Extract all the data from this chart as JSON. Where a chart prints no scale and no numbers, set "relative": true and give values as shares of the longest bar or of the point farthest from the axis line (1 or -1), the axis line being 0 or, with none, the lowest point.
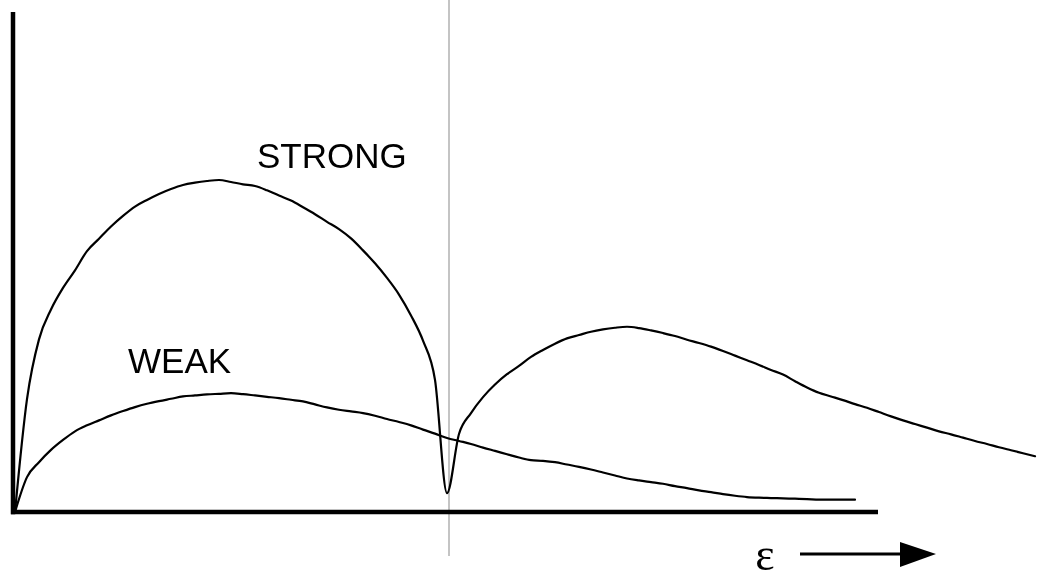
{
  "chart_data": {
    "type": "line",
    "relative": true,
    "xlabel": "ε",
    "categories": [
      null,
      null,
      null,
      null,
      null,
      null,
      null,
      null,
      null,
      null,
      null,
      null,
      null,
      null,
      null,
      null,
      null,
      null,
      null,
      null,
      null,
      null,
      null,
      null,
      null,
      null,
      null,
      null,
      null,
      null,
      null,
      null,
      null,
      null,
      null,
      null,
      null,
      null,
      null,
      null,
      null,
      null,
      null,
      null,
      null,
      null,
      null,
      null,
      null,
      null,
      null,
      null,
      null,
      null,
      null,
      null,
      null,
      null,
      null,
      null,
      null,
      null,
      null,
      null,
      null,
      null,
      null,
      null,
      null,
      null,
      null,
      null,
      null,
      null,
      null,
      null,
      null,
      null,
      null,
      null,
      null,
      null,
      null,
      null,
      null,
      null
    ],
    "series": [
      {
        "name": "STRONG",
        "color": "#000000",
        "values": [
          0,
          0.34,
          0.52,
          0.61,
          0.675,
          0.728,
          0.786,
          0.823,
          0.86,
          0.892,
          0.92,
          0.94,
          0.958,
          0.973,
          0.985,
          0.992,
          0.997,
          1.0,
          0.994,
          0.987,
          0.982,
          0.969,
          0.953,
          0.938,
          0.918,
          0.897,
          0.874,
          0.852,
          0.824,
          0.788,
          0.749,
          0.705,
          0.655,
          0.592,
          0.516,
          0.398,
          0.057,
          0.235,
          0.298,
          0.346,
          0.384,
          0.415,
          0.44,
          0.467,
          0.488,
          0.507,
          0.523,
          0.533,
          0.543,
          0.55,
          0.555,
          0.558,
          0.554,
          0.547,
          0.539,
          0.53,
          0.519,
          0.509,
          0.498,
          0.485,
          0.471,
          0.457,
          0.443,
          0.428,
          0.414,
          0.394,
          0.375,
          0.359,
          0.348,
          0.337,
          0.325,
          0.314,
          0.301,
          0.288,
          0.276,
          0.265,
          0.254,
          0.243,
          0.234,
          0.224,
          0.214,
          0.205,
          0.195,
          0.186,
          0.177,
          0.168
        ]
      },
      {
        "name": "WEAK",
        "color": "#000000",
        "values": [
          0,
          0.105,
          0.15,
          0.187,
          0.217,
          0.243,
          0.261,
          0.276,
          0.291,
          0.304,
          0.316,
          0.326,
          0.334,
          0.341,
          0.348,
          0.351,
          0.354,
          0.356,
          0.358,
          0.355,
          0.351,
          0.347,
          0.343,
          0.338,
          0.333,
          0.324,
          0.315,
          0.308,
          0.303,
          0.298,
          0.29,
          0.28,
          0.271,
          0.261,
          0.248,
          0.236,
          0.223,
          0.214,
          0.205,
          0.194,
          0.184,
          0.174,
          0.164,
          0.156,
          0.154,
          0.15,
          0.143,
          0.136,
          0.128,
          0.119,
          0.11,
          0.101,
          0.095,
          0.09,
          0.085,
          0.078,
          0.072,
          0.065,
          0.06,
          0.054,
          0.049,
          0.045,
          0.043,
          0.042,
          0.041,
          0.04,
          0.039,
          0.037,
          0.037,
          0.037,
          0.037,
          null,
          null,
          null,
          null,
          null,
          null,
          null,
          null,
          null,
          null,
          null,
          null,
          null,
          null,
          null
        ]
      }
    ]
  }
}
